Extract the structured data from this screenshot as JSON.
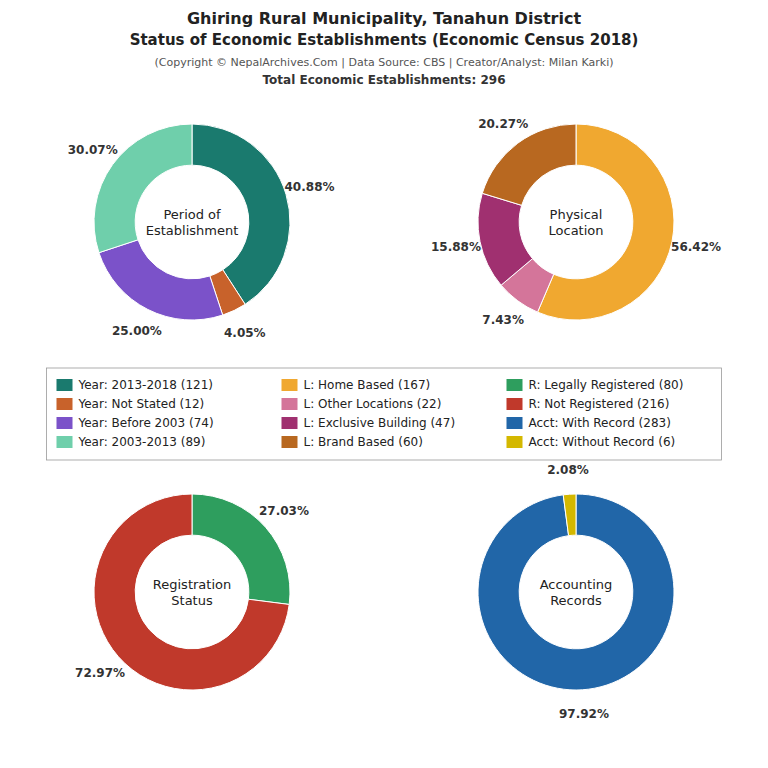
{
  "title": "Ghiring Rural Municipality, Tanahun District\nStatus of Economic Establishments (Economic Census 2018)",
  "subtitle": "(Copyright © NepalArchives.Com | Data Source: CBS | Creator/Analyst: Milan Karki)",
  "annotations": [
    "Total Economic Establishments: 296"
  ],
  "chart_data": [
    {
      "type": "pie",
      "title": "Period of\nEstablishment",
      "categories": [
        "Year: 2013-2018 (121)",
        "Year: Not Stated (12)",
        "Year: Before 2003 (74)",
        "Year: 2003-2013 (89)"
      ],
      "values": [
        40.88,
        4.05,
        25.0,
        30.07
      ],
      "value_labels": [
        "40.88%",
        "4.05%",
        "25.00%",
        "30.07%"
      ],
      "colors": [
        "#1a7a6e",
        "#c8622b",
        "#7b52c9",
        "#6fcfab"
      ],
      "data_labels": true
    },
    {
      "type": "pie",
      "title": "Physical\nLocation",
      "categories": [
        "L: Home Based (167)",
        "L: Other Locations (22)",
        "L: Exclusive Building (47)",
        "L: Brand Based (60)"
      ],
      "values": [
        56.42,
        7.43,
        15.88,
        20.27
      ],
      "value_labels": [
        "56.42%",
        "7.43%",
        "15.88%",
        "20.27%"
      ],
      "colors": [
        "#f0a830",
        "#d4759a",
        "#a03070",
        "#b86820"
      ],
      "data_labels": true
    },
    {
      "type": "pie",
      "title": "Registration\nStatus",
      "categories": [
        "R: Legally Registered (80)",
        "R: Not Registered (216)"
      ],
      "values": [
        27.03,
        72.97
      ],
      "value_labels": [
        "27.03%",
        "72.97%"
      ],
      "colors": [
        "#2e9e5e",
        "#c0392b"
      ],
      "data_labels": true
    },
    {
      "type": "pie",
      "title": "Accounting\nRecords",
      "categories": [
        "Acct: With Record (283)",
        "Acct: Without Record (6)"
      ],
      "values": [
        97.92,
        2.08
      ],
      "value_labels": [
        "97.92%",
        "2.08%"
      ],
      "colors": [
        "#2166a8",
        "#d4b800"
      ],
      "data_labels": true
    }
  ]
}
